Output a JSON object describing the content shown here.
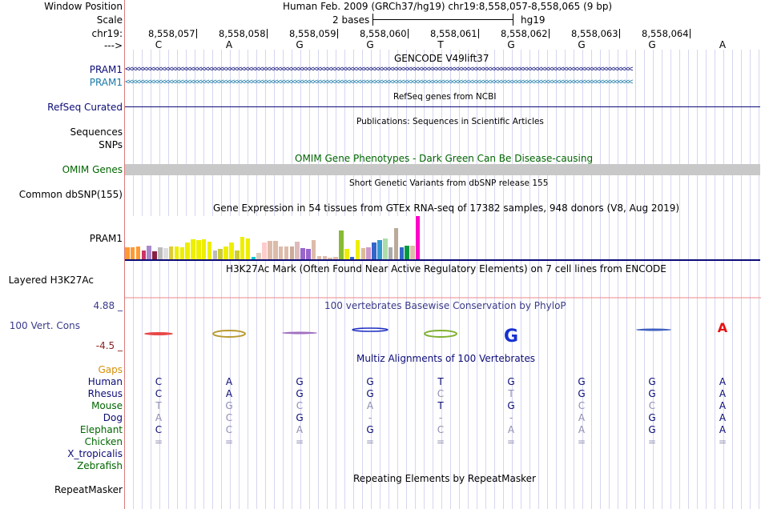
{
  "header": {
    "window_position_label": "Window Position",
    "scale_label": "Scale",
    "chrom_label": "chr19:",
    "strand_label": "--->",
    "assembly_text": "Human Feb. 2009 (GRCh37/hg19)   chr19:8,558,057-8,558,065 (9 bp)",
    "scale_text": "2 bases",
    "scale_db": "hg19",
    "positions": [
      "8,558,057",
      "8,558,058",
      "8,558,059",
      "8,558,060",
      "8,558,061",
      "8,558,062",
      "8,558,063",
      "8,558,064"
    ],
    "bases": [
      "C",
      "A",
      "G",
      "G",
      "T",
      "G",
      "G",
      "G",
      "A"
    ]
  },
  "tracks": {
    "gencode_title": "GENCODE V49lift37",
    "gencode_items": [
      "PRAM1",
      "PRAM1"
    ],
    "refseq_title": "RefSeq genes from NCBI",
    "refseq_label": "RefSeq Curated",
    "publications_title": "Publications: Sequences in Scientific Articles",
    "sequences_label": "Sequences",
    "snps_label": "SNPs",
    "omim_title": "OMIM Gene Phenotypes - Dark Green Can Be Disease-causing",
    "omim_label": "OMIM Genes",
    "dbsnp_title": "Short Genetic Variants from dbSNP release 155",
    "dbsnp_label": "Common dbSNP(155)",
    "gtex_title": "Gene Expression in 54 tissues from GTEx RNA-seq of 17382 samples, 948 donors (V8, Aug 2019)",
    "gtex_label": "PRAM1",
    "h3k27ac_title": "H3K27Ac Mark (Often Found Near Active Regulatory Elements) on 7 cell lines from ENCODE",
    "h3k27ac_label": "Layered H3K27Ac",
    "cons_title": "100 vertebrates Basewise Conservation by PhyloP",
    "cons_label": "100 Vert. Cons",
    "cons_max": "4.88 _",
    "cons_min": "-4.5 _",
    "multiz_title": "Multiz Alignments of 100 Vertebrates",
    "gaps_label": "Gaps",
    "species": [
      "Human",
      "Rhesus",
      "Mouse",
      "Dog",
      "Elephant",
      "Chicken",
      "X_tropicalis",
      "Zebrafish"
    ],
    "alignments": [
      [
        "C",
        "A",
        "G",
        "G",
        "T",
        "G",
        "G",
        "G",
        "A"
      ],
      [
        "C",
        "A",
        "G",
        "G",
        "C",
        "T",
        "G",
        "G",
        "A"
      ],
      [
        "T",
        "G",
        "C",
        "A",
        "T",
        "G",
        "C",
        "C",
        "A"
      ],
      [
        "A",
        "C",
        "G",
        "-",
        "-",
        "-",
        "A",
        "G",
        "A"
      ],
      [
        "C",
        "C",
        "A",
        "G",
        "C",
        "A",
        "A",
        "G",
        "A"
      ],
      [
        "=",
        "=",
        "=",
        "=",
        "=",
        "=",
        "=",
        "=",
        "="
      ]
    ],
    "repeatmasker_title": "Repeating Elements by RepeatMasker",
    "repeatmasker_label": "RepeatMasker"
  },
  "gtex_values": [
    0.28,
    0.28,
    0.3,
    0.2,
    0.32,
    0.18,
    0.28,
    0.26,
    0.3,
    0.3,
    0.28,
    0.38,
    0.46,
    0.44,
    0.46,
    0.4,
    0.2,
    0.24,
    0.3,
    0.38,
    0.2,
    0.52,
    0.48,
    0.06,
    0.14,
    0.38,
    0.42,
    0.42,
    0.3,
    0.3,
    0.3,
    0.4,
    0.26,
    0.24,
    0.44,
    0.08,
    0.08,
    0.04,
    0.06,
    0.66,
    0.24,
    0.06,
    0.44,
    0.26,
    0.28,
    0.38,
    0.44,
    0.48,
    0.28,
    0.72,
    0.28,
    0.32,
    0.32,
    1.0
  ],
  "gtex_colors": [
    "#ff9933",
    "#ff9933",
    "#ff9933",
    "#cc3366",
    "#aa88cc",
    "#882244",
    "#bbbbbb",
    "#dddddd",
    "#ddcc33",
    "#eeee00",
    "#eeee00",
    "#eeee00",
    "#eeee00",
    "#eeee00",
    "#eeee00",
    "#eeee00",
    "#bbbbbb",
    "#cccc33",
    "#eeee00",
    "#eeee00",
    "#cccc33",
    "#eeee00",
    "#eeee00",
    "#00cccc",
    "#ddccbb",
    "#ffcccc",
    "#ddbbaa",
    "#ddbbaa",
    "#ddbbaa",
    "#ddbbaa",
    "#ccaa99",
    "#ddbbbb",
    "#9966cc",
    "#9966cc",
    "#ddbbaa",
    "#ddbbaa",
    "#ddbbaa",
    "#ddbbaa",
    "#ddbbaa",
    "#88bb33",
    "#eeee00",
    "#3366cc",
    "#eeee00",
    "#ddbb99",
    "#cc99cc",
    "#3366cc",
    "#3399cc",
    "#aaddaa",
    "#aaaaaa",
    "#bbaa99",
    "#3366cc",
    "#009944",
    "#ddbbaa",
    "#ff00cc"
  ],
  "colors": {
    "gencode": "#0c0c78",
    "gencode_alt": "#1a7aa8",
    "refseq": "#0c0c78",
    "omim": "#006600",
    "gaps": "#d4900a",
    "species": "#0c0c78",
    "divider": "#d97c7c",
    "gridline": "#d6d6f0",
    "cons_axis": "#3a3a8a",
    "cons_min": "#8b2222",
    "match_base": "#0c0c78",
    "mismatch_base": "#8e8eb4",
    "chicken": "#006600"
  },
  "icons": {
    "minus_strand_arrows": "chevron-left-icon"
  }
}
